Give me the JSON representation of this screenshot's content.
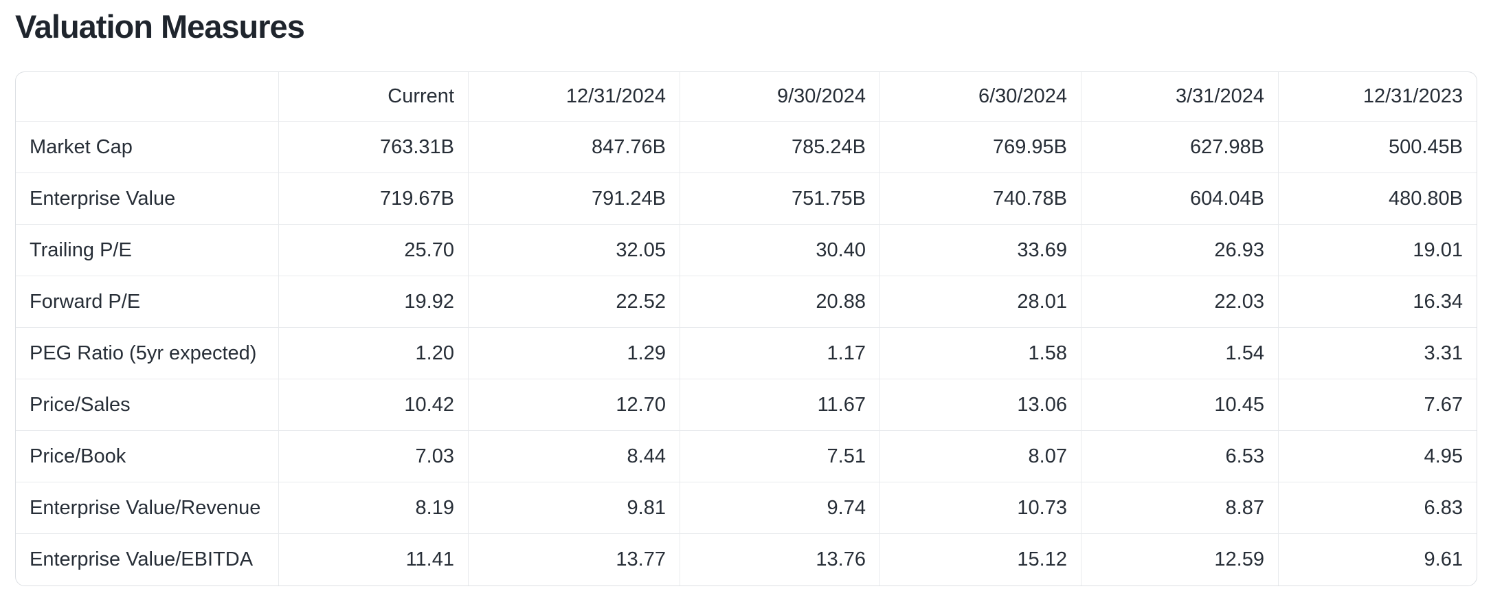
{
  "page_title": "Valuation Measures",
  "table": {
    "columns": [
      "",
      "Current",
      "12/31/2024",
      "9/30/2024",
      "6/30/2024",
      "3/31/2024",
      "12/31/2023"
    ],
    "rows": [
      {
        "label": "Market Cap",
        "values": [
          "763.31B",
          "847.76B",
          "785.24B",
          "769.95B",
          "627.98B",
          "500.45B"
        ]
      },
      {
        "label": "Enterprise Value",
        "values": [
          "719.67B",
          "791.24B",
          "751.75B",
          "740.78B",
          "604.04B",
          "480.80B"
        ]
      },
      {
        "label": "Trailing P/E",
        "values": [
          "25.70",
          "32.05",
          "30.40",
          "33.69",
          "26.93",
          "19.01"
        ]
      },
      {
        "label": "Forward P/E",
        "values": [
          "19.92",
          "22.52",
          "20.88",
          "28.01",
          "22.03",
          "16.34"
        ]
      },
      {
        "label": "PEG Ratio (5yr expected)",
        "values": [
          "1.20",
          "1.29",
          "1.17",
          "1.58",
          "1.54",
          "3.31"
        ]
      },
      {
        "label": "Price/Sales",
        "values": [
          "10.42",
          "12.70",
          "11.67",
          "13.06",
          "10.45",
          "7.67"
        ]
      },
      {
        "label": "Price/Book",
        "values": [
          "7.03",
          "8.44",
          "7.51",
          "8.07",
          "6.53",
          "4.95"
        ]
      },
      {
        "label": "Enterprise Value/Revenue",
        "values": [
          "8.19",
          "9.81",
          "9.74",
          "10.73",
          "8.87",
          "6.83"
        ]
      },
      {
        "label": "Enterprise Value/EBITDA",
        "values": [
          "11.41",
          "13.77",
          "13.76",
          "15.12",
          "12.59",
          "9.61"
        ]
      }
    ]
  },
  "colors": {
    "background": "#ffffff",
    "title_text": "#1f252d",
    "body_text": "#272e37",
    "border_outer": "#dcdfe3",
    "border_inner": "#e8eaed"
  }
}
